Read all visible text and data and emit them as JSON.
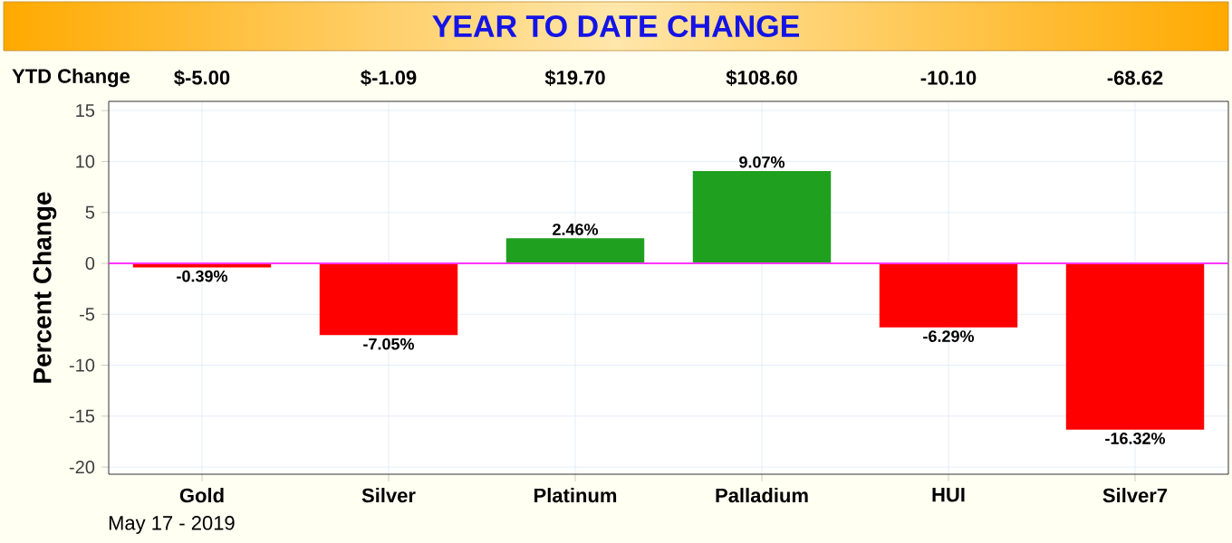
{
  "chart_data": {
    "type": "bar",
    "title": "YEAR TO DATE CHANGE",
    "ylabel": "Percent Change",
    "categories": [
      "Gold",
      "Silver",
      "Platinum",
      "Palladium",
      "HUI",
      "Silver7"
    ],
    "values": [
      -0.39,
      -7.05,
      2.46,
      9.07,
      -6.29,
      -16.32
    ],
    "colors": [
      "#ff0000",
      "#ff0000",
      "#1fa01f",
      "#1fa01f",
      "#ff0000",
      "#ff0000"
    ],
    "value_labels": [
      "-0.39%",
      "-7.05%",
      "2.46%",
      "9.07%",
      "-6.29%",
      "-16.32%"
    ],
    "ylim": [
      -20.7,
      15.9
    ],
    "yticks": [
      -20,
      -15,
      -10,
      -5,
      0,
      5,
      10,
      15
    ],
    "grid": true,
    "ref_lines": [
      {
        "axis": "y",
        "value": 0,
        "color": "#ff33ff"
      }
    ],
    "annotations": [
      "YTD Change",
      "$-5.00",
      "$-1.09",
      "$19.70",
      "$108.60",
      "-10.10",
      "-68.62",
      "May 17 - 2019"
    ]
  }
}
